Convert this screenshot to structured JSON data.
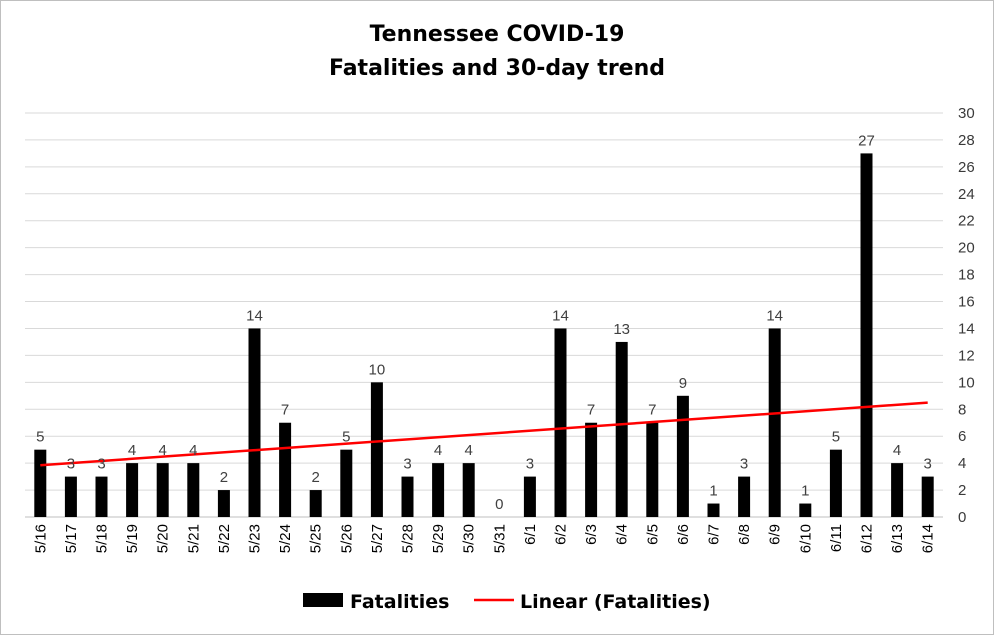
{
  "chart_data": {
    "type": "bar",
    "title": "Tennessee COVID-19",
    "subtitle": "Fatalities and 30-day trend",
    "categories": [
      "5/16",
      "5/17",
      "5/18",
      "5/19",
      "5/20",
      "5/21",
      "5/22",
      "5/23",
      "5/24",
      "5/25",
      "5/26",
      "5/27",
      "5/28",
      "5/29",
      "5/30",
      "5/31",
      "6/1",
      "6/2",
      "6/3",
      "6/4",
      "6/5",
      "6/6",
      "6/7",
      "6/8",
      "6/9",
      "6/10",
      "6/11",
      "6/12",
      "6/13",
      "6/14"
    ],
    "series": [
      {
        "name": "Fatalities",
        "type": "bar",
        "color": "#000000",
        "values": [
          5,
          3,
          3,
          4,
          4,
          4,
          2,
          14,
          7,
          2,
          5,
          10,
          3,
          4,
          4,
          0,
          3,
          14,
          7,
          13,
          7,
          9,
          1,
          3,
          14,
          1,
          5,
          27,
          4,
          3
        ]
      },
      {
        "name": "Linear (Fatalities)",
        "type": "linear-trendline",
        "color": "#ff0000"
      }
    ],
    "y_axis": {
      "position": "right",
      "ylim": [
        0,
        30
      ],
      "ticks": [
        0,
        2,
        4,
        6,
        8,
        10,
        12,
        14,
        16,
        18,
        20,
        22,
        24,
        26,
        28,
        30
      ]
    },
    "grid": true,
    "data_labels": true,
    "legend": {
      "position": "bottom"
    }
  }
}
